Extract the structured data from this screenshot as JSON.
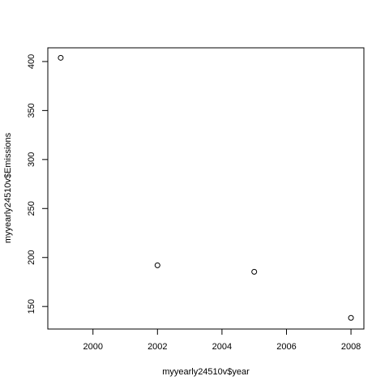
{
  "chart_data": {
    "type": "scatter",
    "title": "",
    "xlabel": "myyearly24510v$year",
    "ylabel": "myyearly24510v$Emissions",
    "x": [
      1999,
      2002,
      2005,
      2008
    ],
    "y": [
      403.8,
      192.0,
      185.4,
      138.4
    ],
    "xlim": [
      1998.6,
      2008.4
    ],
    "ylim": [
      127.0,
      414.0
    ],
    "xticks": [
      2000,
      2002,
      2004,
      2006,
      2008
    ],
    "yticks": [
      150,
      200,
      250,
      300,
      350,
      400
    ],
    "grid": false,
    "marker": "open-circle",
    "colors": {
      "axis": "#000000",
      "point": "#000000"
    }
  }
}
